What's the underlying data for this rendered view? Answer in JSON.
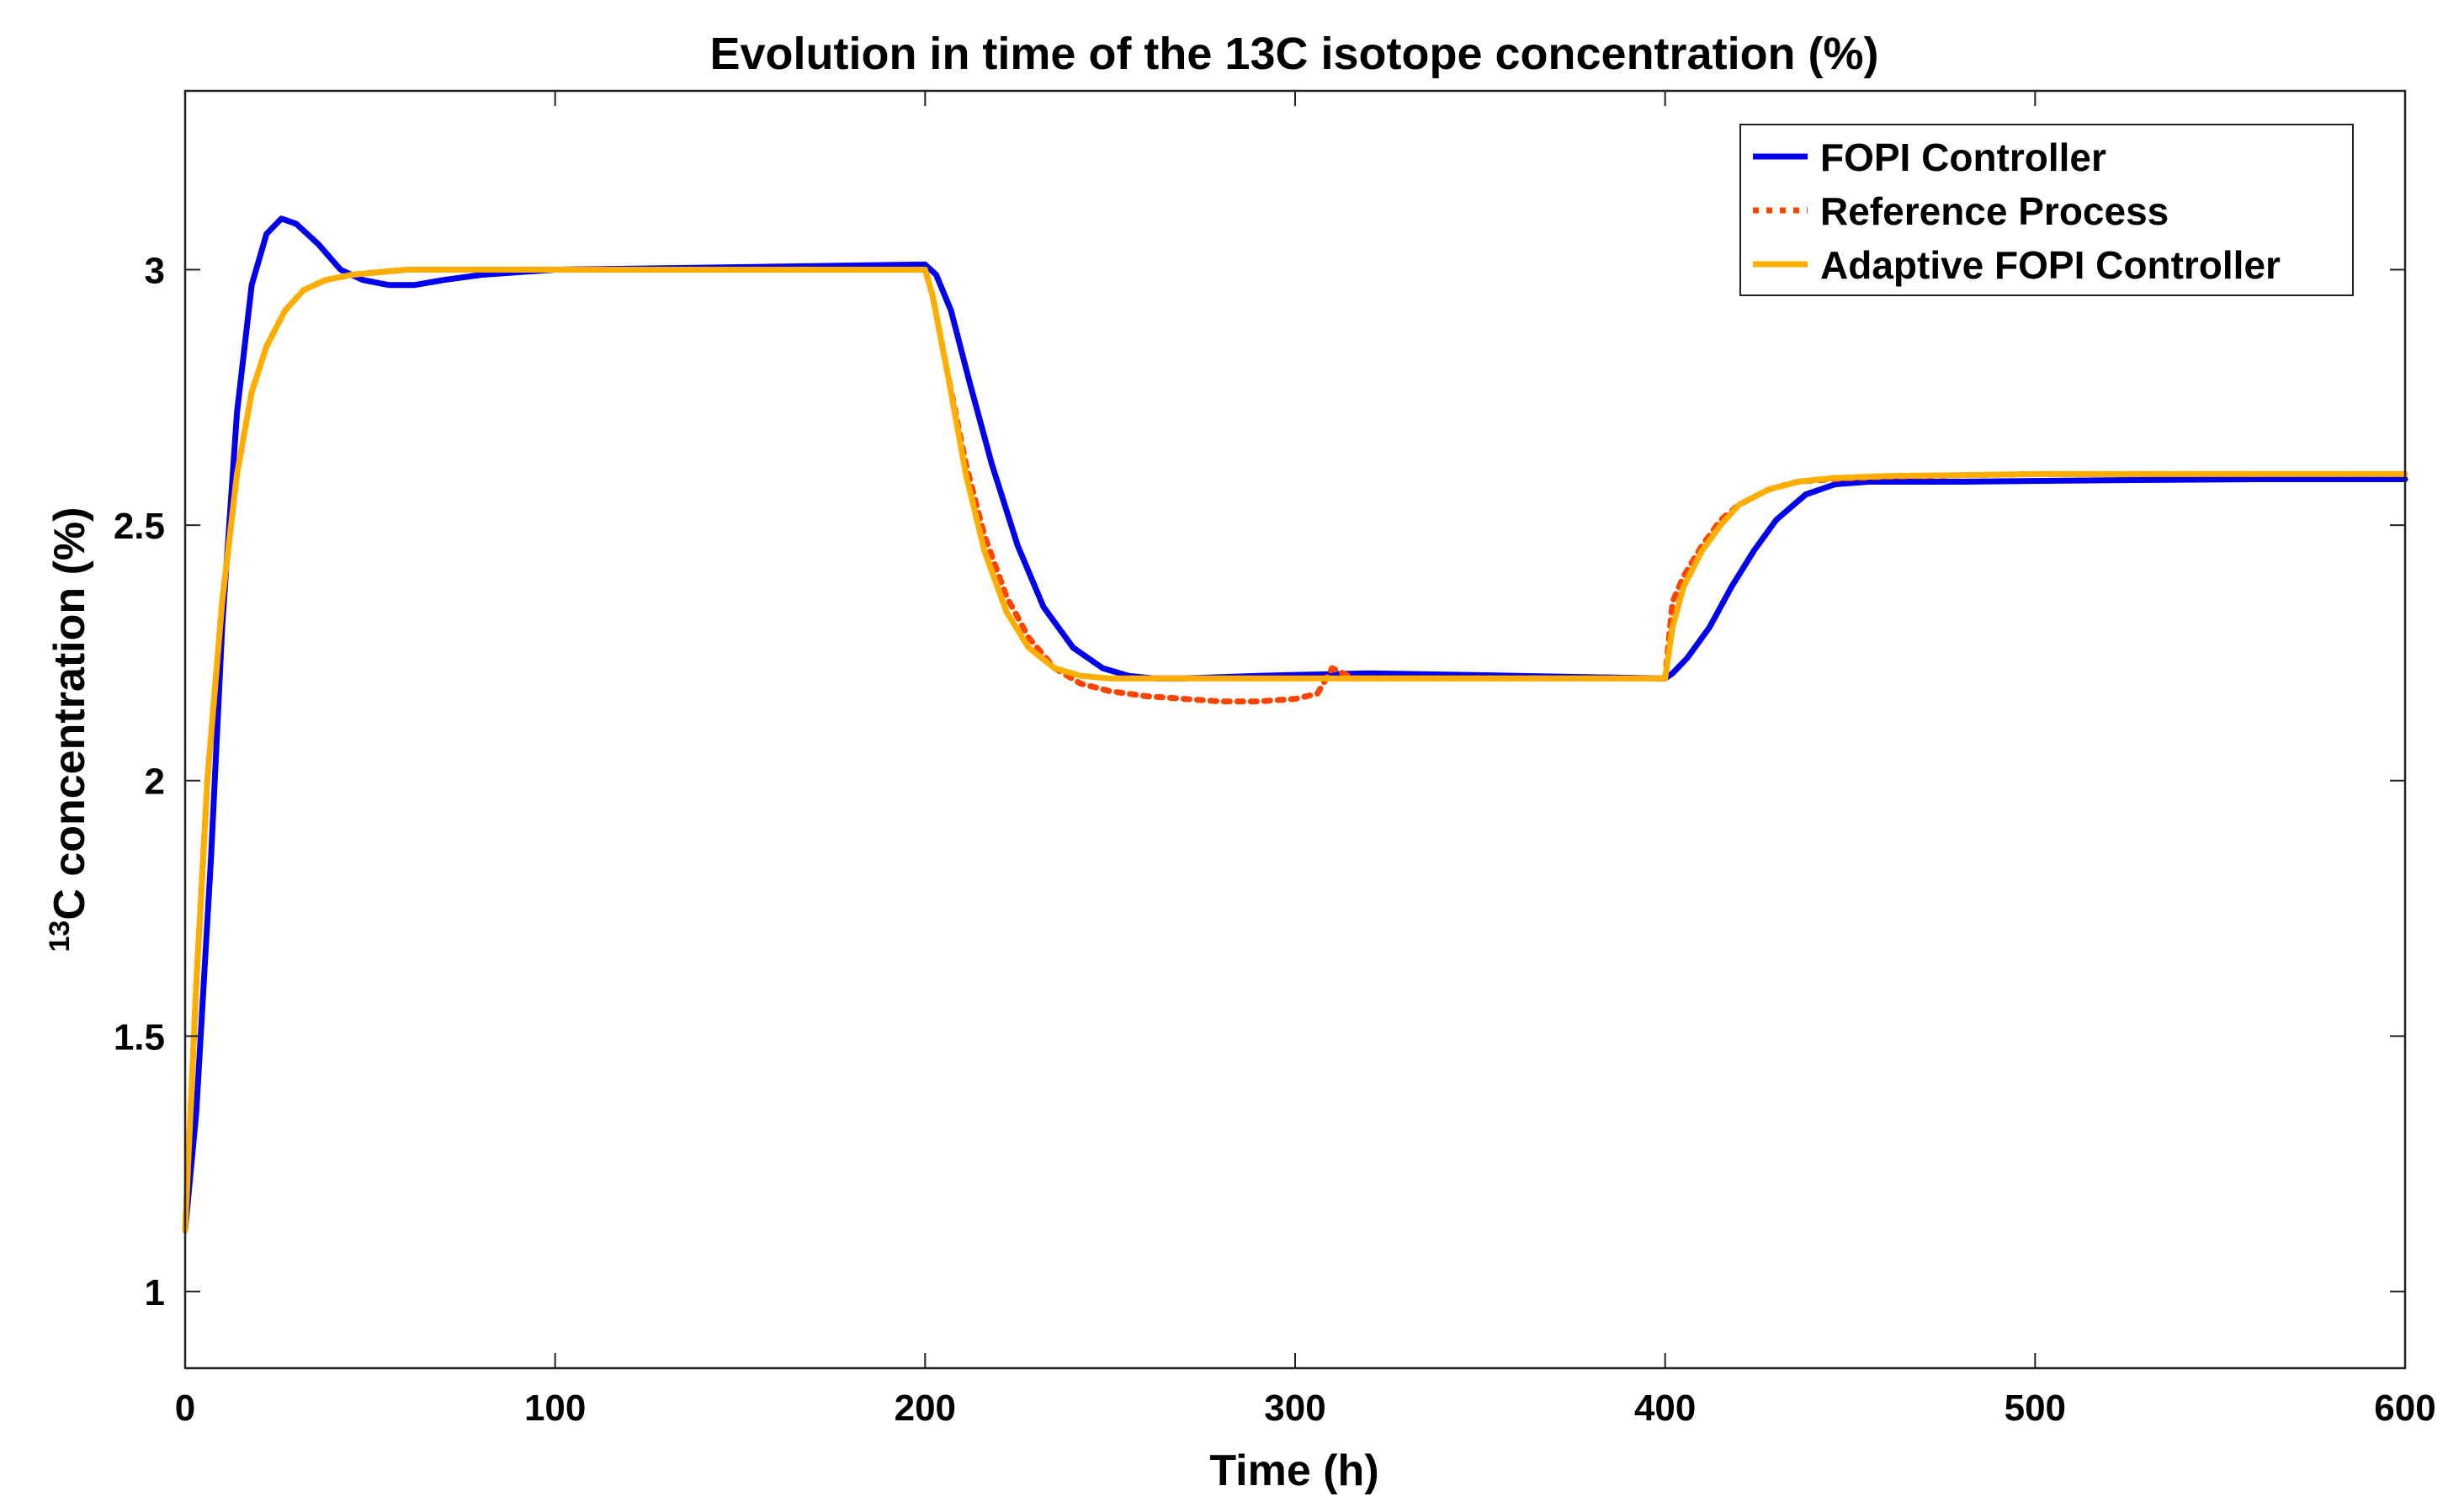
{
  "chart_data": {
    "type": "line",
    "title": "Evolution in time of the 13C isotope concentration (%)",
    "xlabel": "Time (h)",
    "ylabel_sup": "13",
    "ylabel": "C concentration (%)",
    "xlim": [
      0,
      600
    ],
    "ylim": [
      0.85,
      3.35
    ],
    "xticks": [
      0,
      100,
      200,
      300,
      400,
      500,
      600
    ],
    "xtick_labels": [
      "0",
      "100",
      "200",
      "300",
      "400",
      "500",
      "600"
    ],
    "yticks": [
      1,
      1.5,
      2,
      2.5,
      3
    ],
    "ytick_labels": [
      "1",
      "1.5",
      "2",
      "2.5",
      "3"
    ],
    "grid": false,
    "legend_position": "top-right",
    "series": [
      {
        "name": "FOPI Controller",
        "color": "#0000ee",
        "style": "solid",
        "x": [
          0,
          3,
          7,
          10,
          14,
          18,
          22,
          26,
          30,
          36,
          42,
          48,
          55,
          62,
          70,
          80,
          100,
          150,
          199,
          200,
          203,
          207,
          212,
          218,
          225,
          232,
          240,
          248,
          255,
          262,
          270,
          290,
          320,
          360,
          399,
          400,
          402,
          406,
          412,
          418,
          424,
          430,
          438,
          446,
          455,
          480,
          520,
          560,
          600
        ],
        "y": [
          1.12,
          1.35,
          1.85,
          2.3,
          2.72,
          2.97,
          3.07,
          3.1,
          3.09,
          3.05,
          3.0,
          2.98,
          2.97,
          2.97,
          2.98,
          2.99,
          3.0,
          3.005,
          3.01,
          3.01,
          2.99,
          2.92,
          2.78,
          2.62,
          2.46,
          2.34,
          2.26,
          2.22,
          2.205,
          2.2,
          2.2,
          2.205,
          2.21,
          2.205,
          2.2,
          2.2,
          2.21,
          2.24,
          2.3,
          2.38,
          2.45,
          2.51,
          2.56,
          2.58,
          2.585,
          2.585,
          2.588,
          2.59,
          2.59
        ]
      },
      {
        "name": "Reference Process",
        "color": "#ff4400",
        "style": "dotted",
        "x": [
          0,
          3,
          6,
          10,
          14,
          18,
          22,
          27,
          32,
          38,
          45,
          52,
          60,
          80,
          120,
          200,
          202,
          206,
          211,
          216,
          222,
          228,
          235,
          242,
          250,
          260,
          270,
          280,
          290,
          300,
          306,
          310,
          316,
          330,
          360,
          400,
          402,
          405,
          410,
          415,
          420,
          428,
          436,
          445,
          460,
          500,
          600
        ],
        "y": [
          1.12,
          1.6,
          2.0,
          2.35,
          2.6,
          2.76,
          2.85,
          2.92,
          2.96,
          2.98,
          2.99,
          2.995,
          3.0,
          3.0,
          3.0,
          3.0,
          2.95,
          2.8,
          2.62,
          2.48,
          2.36,
          2.28,
          2.22,
          2.19,
          2.175,
          2.165,
          2.16,
          2.155,
          2.155,
          2.16,
          2.17,
          2.22,
          2.2,
          2.2,
          2.2,
          2.2,
          2.35,
          2.4,
          2.46,
          2.51,
          2.54,
          2.57,
          2.585,
          2.59,
          2.595,
          2.6,
          2.6
        ]
      },
      {
        "name": "Adaptive FOPI Controller",
        "color": "#ffae00",
        "style": "solid",
        "x": [
          0,
          3,
          6,
          10,
          14,
          18,
          22,
          27,
          32,
          38,
          45,
          52,
          60,
          80,
          120,
          200,
          202,
          206,
          211,
          216,
          222,
          228,
          235,
          242,
          250,
          260,
          280,
          300,
          340,
          399,
          400,
          402,
          405,
          410,
          415,
          420,
          428,
          436,
          445,
          460,
          500,
          600
        ],
        "y": [
          1.12,
          1.6,
          2.0,
          2.35,
          2.6,
          2.76,
          2.85,
          2.92,
          2.96,
          2.98,
          2.99,
          2.995,
          3.0,
          3.0,
          3.0,
          3.0,
          2.95,
          2.8,
          2.6,
          2.45,
          2.33,
          2.26,
          2.22,
          2.205,
          2.2,
          2.2,
          2.2,
          2.2,
          2.2,
          2.2,
          2.2,
          2.3,
          2.38,
          2.45,
          2.5,
          2.54,
          2.57,
          2.585,
          2.592,
          2.596,
          2.6,
          2.6
        ]
      }
    ]
  }
}
